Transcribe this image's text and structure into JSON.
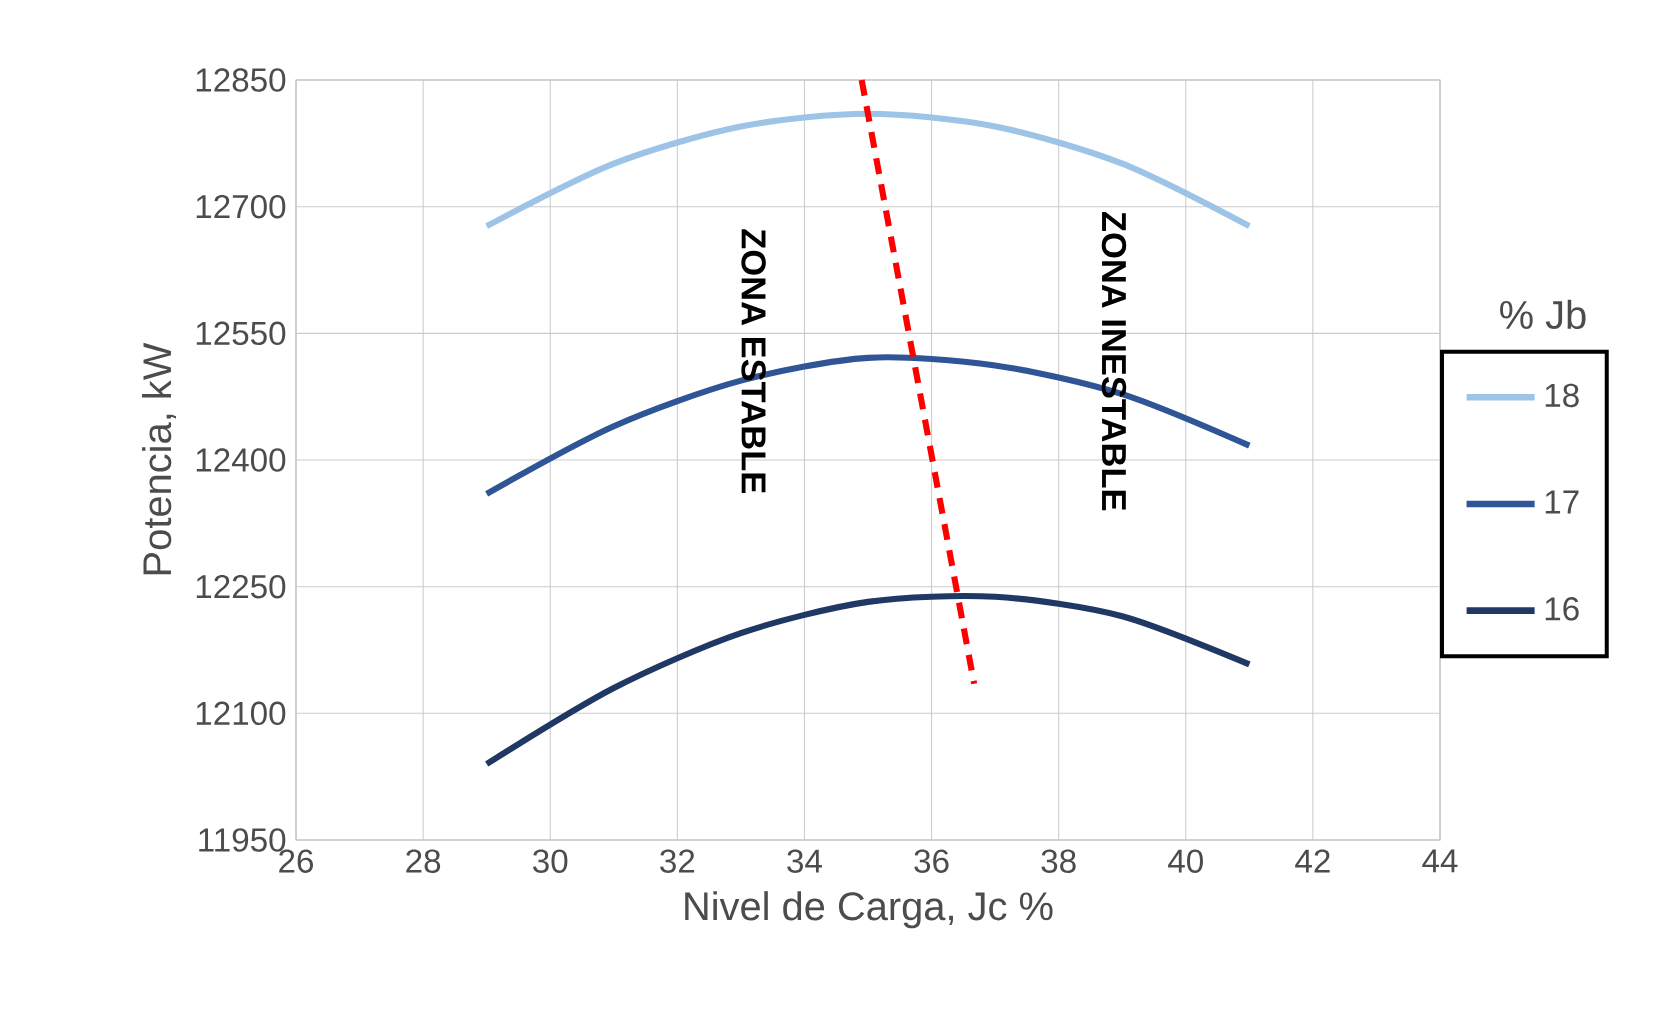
{
  "chart_data": {
    "type": "line",
    "xlabel": "Nivel de Carga, Jc %",
    "ylabel": "Potencia, kW",
    "legend_title": "% Jb",
    "xlim": [
      26,
      44
    ],
    "xticks": [
      26,
      28,
      30,
      32,
      34,
      36,
      38,
      40,
      42,
      44
    ],
    "ylim": [
      11950,
      12850
    ],
    "yticks": [
      11950,
      12100,
      12250,
      12400,
      12550,
      12700,
      12850
    ],
    "grid": true,
    "legend": "right",
    "marker": "none",
    "series": [
      {
        "name": "18",
        "color": "#9dc3e6",
        "x": [
          29,
          31,
          33,
          35,
          37,
          39,
          41
        ],
        "values": [
          12677,
          12751,
          12795,
          12810,
          12795,
          12751,
          12677
        ]
      },
      {
        "name": "17",
        "color": "#2f5597",
        "x": [
          29,
          31,
          33,
          35,
          37,
          39,
          41
        ],
        "values": [
          12360,
          12440,
          12494,
          12521,
          12512,
          12478,
          12417
        ]
      },
      {
        "name": "16",
        "color": "#1f3864",
        "x": [
          29,
          31,
          33,
          35,
          37,
          39,
          41
        ],
        "values": [
          12040,
          12130,
          12195,
          12232,
          12238,
          12215,
          12158
        ]
      },
      {
        "color": "#ff0000",
        "line_style": "dashed",
        "x": [
          34.9,
          36.67
        ],
        "values": [
          12850,
          12135
        ]
      }
    ],
    "annotations": [
      "**ZONA ESTABLE**",
      "**ZONA INESTABLE**"
    ]
  }
}
